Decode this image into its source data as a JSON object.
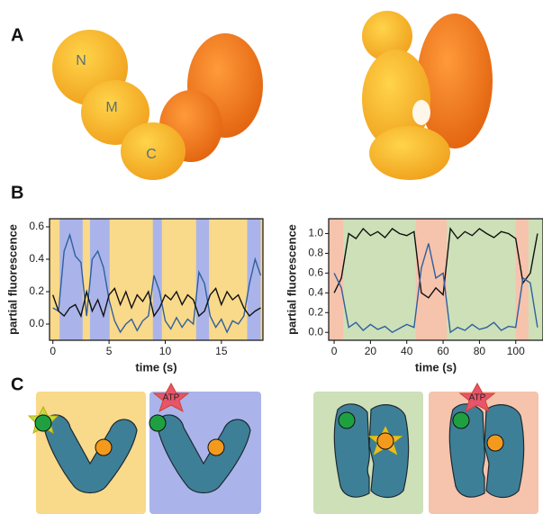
{
  "panel_labels": [
    "A",
    "B",
    "C"
  ],
  "domain_labels": [
    "N",
    "M",
    "C"
  ],
  "atp_labels": [
    "ATP",
    "ATP"
  ],
  "chart_data": [
    {
      "type": "line",
      "xlabel": "time (s)",
      "ylabel": "partial fluorescence",
      "xlim": [
        -0.3,
        18.7
      ],
      "ylim": [
        -0.1,
        0.65
      ],
      "xticks": [
        0,
        5,
        10,
        15
      ],
      "yticks": [
        {
          "value": 0,
          "label": "0.0"
        },
        0.2,
        0.4,
        0.6
      ],
      "background": "#f9d98a",
      "regions": [
        {
          "start": 0.6,
          "end": 2.65,
          "color": "#aab4ea"
        },
        {
          "start": 3.3,
          "end": 5.05,
          "color": "#aab4ea"
        },
        {
          "start": 8.9,
          "end": 9.7,
          "color": "#aab4ea"
        },
        {
          "start": 12.75,
          "end": 13.9,
          "color": "#aab4ea"
        },
        {
          "start": 17.3,
          "end": 18.5,
          "color": "#aab4ea"
        }
      ],
      "x": [
        0,
        0.5,
        1,
        1.5,
        2,
        2.5,
        3,
        3.5,
        4,
        4.5,
        5,
        5.5,
        6,
        6.5,
        7,
        7.5,
        8,
        8.5,
        9,
        9.5,
        10,
        10.5,
        11,
        11.5,
        12,
        12.5,
        13,
        13.5,
        14,
        14.5,
        15,
        15.5,
        16,
        16.5,
        17,
        17.5,
        18,
        18.5
      ],
      "series": [
        {
          "color": "#2f5f9e",
          "values": [
            0.1,
            0.08,
            0.45,
            0.55,
            0.42,
            0.38,
            0.05,
            0.4,
            0.45,
            0.35,
            0.15,
            0.02,
            -0.05,
            0.0,
            0.03,
            -0.04,
            0.02,
            0.05,
            0.3,
            0.2,
            0.02,
            -0.03,
            0.04,
            -0.02,
            0.03,
            0.0,
            0.32,
            0.25,
            0.05,
            -0.02,
            0.03,
            -0.05,
            0.02,
            0.0,
            0.05,
            0.25,
            0.4,
            0.3
          ]
        },
        {
          "color": "#111111",
          "values": [
            0.18,
            0.08,
            0.05,
            0.1,
            0.12,
            0.05,
            0.2,
            0.08,
            0.15,
            0.05,
            0.18,
            0.22,
            0.12,
            0.2,
            0.1,
            0.18,
            0.14,
            0.2,
            0.05,
            0.1,
            0.18,
            0.15,
            0.2,
            0.12,
            0.18,
            0.15,
            0.05,
            0.08,
            0.18,
            0.22,
            0.12,
            0.2,
            0.15,
            0.18,
            0.1,
            0.05,
            0.08,
            0.1
          ]
        }
      ]
    },
    {
      "type": "line",
      "xlabel": "time (s)",
      "ylabel": "partial fluorescence",
      "xlim": [
        -3,
        115
      ],
      "ylim": [
        -0.08,
        1.15
      ],
      "xticks": [
        0,
        20,
        40,
        60,
        80,
        100
      ],
      "yticks": [
        {
          "value": 0,
          "label": "0.0"
        },
        0.2,
        0.4,
        0.6,
        0.8,
        {
          "value": 1,
          "label": "1.0"
        }
      ],
      "background": "#cde0b8",
      "regions": [
        {
          "start": -3,
          "end": 5,
          "color": "#f6c3ac"
        },
        {
          "start": 45,
          "end": 62,
          "color": "#f6c3ac"
        },
        {
          "start": 100,
          "end": 107,
          "color": "#f6c3ac"
        }
      ],
      "x": [
        0,
        4,
        8,
        12,
        16,
        20,
        24,
        28,
        32,
        36,
        40,
        44,
        48,
        52,
        56,
        60,
        64,
        68,
        72,
        76,
        80,
        84,
        88,
        92,
        96,
        100,
        104,
        108,
        112
      ],
      "series": [
        {
          "color": "#111111",
          "values": [
            0.4,
            0.55,
            1.0,
            0.95,
            1.05,
            0.98,
            1.02,
            0.96,
            1.05,
            1.0,
            0.98,
            1.02,
            0.4,
            0.35,
            0.45,
            0.38,
            1.05,
            0.95,
            1.02,
            0.98,
            1.05,
            1.0,
            0.96,
            1.02,
            1.0,
            0.95,
            0.5,
            0.6,
            1.0
          ]
        },
        {
          "color": "#2f5f9e",
          "values": [
            0.6,
            0.45,
            0.05,
            0.1,
            0.02,
            0.08,
            0.03,
            0.06,
            0.0,
            0.04,
            0.08,
            0.05,
            0.65,
            0.9,
            0.55,
            0.6,
            0.0,
            0.05,
            0.02,
            0.08,
            0.03,
            0.05,
            0.1,
            0.02,
            0.06,
            0.05,
            0.55,
            0.5,
            0.05
          ]
        }
      ]
    }
  ]
}
